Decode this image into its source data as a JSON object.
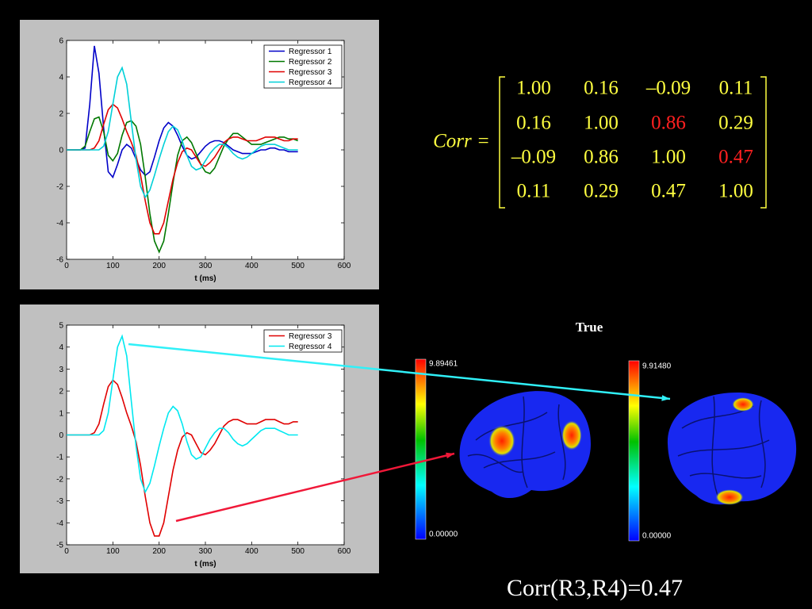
{
  "chart_data": [
    {
      "type": "line",
      "xlabel": "t (ms)",
      "x": [
        0,
        10,
        20,
        30,
        40,
        50,
        60,
        70,
        80,
        90,
        100,
        110,
        120,
        130,
        140,
        150,
        160,
        170,
        180,
        190,
        200,
        210,
        220,
        230,
        240,
        250,
        260,
        270,
        280,
        290,
        300,
        310,
        320,
        330,
        340,
        350,
        360,
        370,
        380,
        390,
        400,
        410,
        420,
        430,
        440,
        450,
        460,
        470,
        480,
        490,
        500
      ],
      "series": [
        {
          "name": "Regressor 1",
          "color": "#0000c8",
          "values": [
            0,
            0,
            0,
            0,
            0.1,
            2.5,
            5.7,
            4.2,
            1.2,
            -1.2,
            -1.5,
            -0.8,
            0,
            0.3,
            0.1,
            -0.5,
            -1.1,
            -1.4,
            -1.2,
            -0.4,
            0.5,
            1.2,
            1.5,
            1.3,
            0.8,
            0.2,
            -0.3,
            -0.5,
            -0.4,
            -0.1,
            0.2,
            0.4,
            0.5,
            0.5,
            0.4,
            0.2,
            0,
            -0.1,
            -0.2,
            -0.2,
            -0.2,
            -0.1,
            0,
            0,
            0.1,
            0.1,
            0,
            0,
            -0.1,
            -0.1,
            -0.1
          ]
        },
        {
          "name": "Regressor 2",
          "color": "#007800",
          "values": [
            0,
            0,
            0,
            0,
            0.2,
            1.0,
            1.7,
            1.8,
            1.0,
            -0.3,
            -0.6,
            -0.2,
            0.8,
            1.5,
            1.6,
            1.3,
            0.3,
            -1.5,
            -3.5,
            -5.0,
            -5.6,
            -5.0,
            -3.5,
            -1.8,
            -0.3,
            0.5,
            0.7,
            0.4,
            -0.2,
            -0.8,
            -1.2,
            -1.3,
            -1.0,
            -0.4,
            0.2,
            0.6,
            0.9,
            0.9,
            0.7,
            0.5,
            0.3,
            0.3,
            0.3,
            0.4,
            0.5,
            0.6,
            0.7,
            0.7,
            0.6,
            0.6,
            0.5
          ]
        },
        {
          "name": "Regressor 3",
          "color": "#e00000",
          "values": [
            0,
            0,
            0,
            0,
            0,
            0,
            0.1,
            0.5,
            1.4,
            2.2,
            2.5,
            2.3,
            1.7,
            1.0,
            0.4,
            -0.3,
            -1.4,
            -2.8,
            -4.0,
            -4.6,
            -4.6,
            -4.0,
            -2.8,
            -1.6,
            -0.7,
            -0.1,
            0.1,
            0,
            -0.4,
            -0.8,
            -0.9,
            -0.7,
            -0.4,
            0,
            0.4,
            0.6,
            0.7,
            0.7,
            0.6,
            0.5,
            0.5,
            0.5,
            0.6,
            0.7,
            0.7,
            0.7,
            0.6,
            0.5,
            0.5,
            0.6,
            0.6
          ]
        },
        {
          "name": "Regressor 4",
          "color": "#00d0d8",
          "values": [
            0,
            0,
            0,
            0,
            0,
            0,
            0,
            0,
            0.2,
            1.0,
            2.5,
            4.0,
            4.5,
            3.6,
            1.5,
            -0.5,
            -2.0,
            -2.6,
            -2.2,
            -1.4,
            -0.5,
            0.3,
            1.0,
            1.3,
            1.1,
            0.5,
            -0.3,
            -0.9,
            -1.1,
            -1.0,
            -0.6,
            -0.2,
            0.1,
            0.3,
            0.3,
            0.1,
            -0.2,
            -0.4,
            -0.5,
            -0.4,
            -0.2,
            0,
            0.2,
            0.3,
            0.3,
            0.3,
            0.2,
            0.1,
            0,
            0,
            0
          ]
        }
      ],
      "xlim": [
        0,
        600
      ],
      "xticks": [
        0,
        100,
        200,
        300,
        400,
        500,
        600
      ],
      "ylim": [
        -6,
        6
      ],
      "yticks": [
        -6,
        -4,
        -2,
        0,
        2,
        4,
        6
      ],
      "legend": "upper right"
    },
    {
      "type": "line",
      "xlabel": "t (ms)",
      "x": [
        0,
        10,
        20,
        30,
        40,
        50,
        60,
        70,
        80,
        90,
        100,
        110,
        120,
        130,
        140,
        150,
        160,
        170,
        180,
        190,
        200,
        210,
        220,
        230,
        240,
        250,
        260,
        270,
        280,
        290,
        300,
        310,
        320,
        330,
        340,
        350,
        360,
        370,
        380,
        390,
        400,
        410,
        420,
        430,
        440,
        450,
        460,
        470,
        480,
        490,
        500
      ],
      "series": [
        {
          "name": "Regressor 3",
          "color": "#e00000",
          "values": [
            0,
            0,
            0,
            0,
            0,
            0,
            0.1,
            0.5,
            1.4,
            2.2,
            2.5,
            2.3,
            1.7,
            1.0,
            0.4,
            -0.3,
            -1.4,
            -2.8,
            -4.0,
            -4.6,
            -4.6,
            -4.0,
            -2.8,
            -1.6,
            -0.7,
            -0.1,
            0.1,
            0,
            -0.4,
            -0.8,
            -0.9,
            -0.7,
            -0.4,
            0,
            0.4,
            0.6,
            0.7,
            0.7,
            0.6,
            0.5,
            0.5,
            0.5,
            0.6,
            0.7,
            0.7,
            0.7,
            0.6,
            0.5,
            0.5,
            0.6,
            0.6
          ]
        },
        {
          "name": "Regressor 4",
          "color": "#00e8f0",
          "values": [
            0,
            0,
            0,
            0,
            0,
            0,
            0,
            0,
            0.2,
            1.0,
            2.5,
            4.0,
            4.5,
            3.6,
            1.5,
            -0.5,
            -2.0,
            -2.6,
            -2.2,
            -1.4,
            -0.5,
            0.3,
            1.0,
            1.3,
            1.1,
            0.5,
            -0.3,
            -0.9,
            -1.1,
            -1.0,
            -0.6,
            -0.2,
            0.1,
            0.3,
            0.3,
            0.1,
            -0.2,
            -0.4,
            -0.5,
            -0.4,
            -0.2,
            0,
            0.2,
            0.3,
            0.3,
            0.3,
            0.2,
            0.1,
            0,
            0,
            0
          ]
        }
      ],
      "xlim": [
        0,
        600
      ],
      "xticks": [
        0,
        100,
        200,
        300,
        400,
        500,
        600
      ],
      "ylim": [
        -5,
        5
      ],
      "yticks": [
        -5,
        -4,
        -3,
        -2,
        -1,
        0,
        1,
        2,
        3,
        4,
        5
      ],
      "legend": "upper right"
    }
  ],
  "matrix": {
    "label": "Corr =",
    "rows": [
      [
        "1.00",
        "0.16",
        "–0.09",
        "0.11"
      ],
      [
        "0.16",
        "1.00",
        "0.86",
        "0.29"
      ],
      [
        "–0.09",
        "0.86",
        "1.00",
        "0.47"
      ],
      [
        "0.11",
        "0.29",
        "0.47",
        "1.00"
      ]
    ]
  },
  "brain_maps": {
    "title": "True",
    "left": {
      "max": "9.89461",
      "min": "0.00000"
    },
    "right": {
      "max": "9.91480",
      "min": "0.00000"
    }
  },
  "caption": "Corr(R3,R4)=0.47"
}
